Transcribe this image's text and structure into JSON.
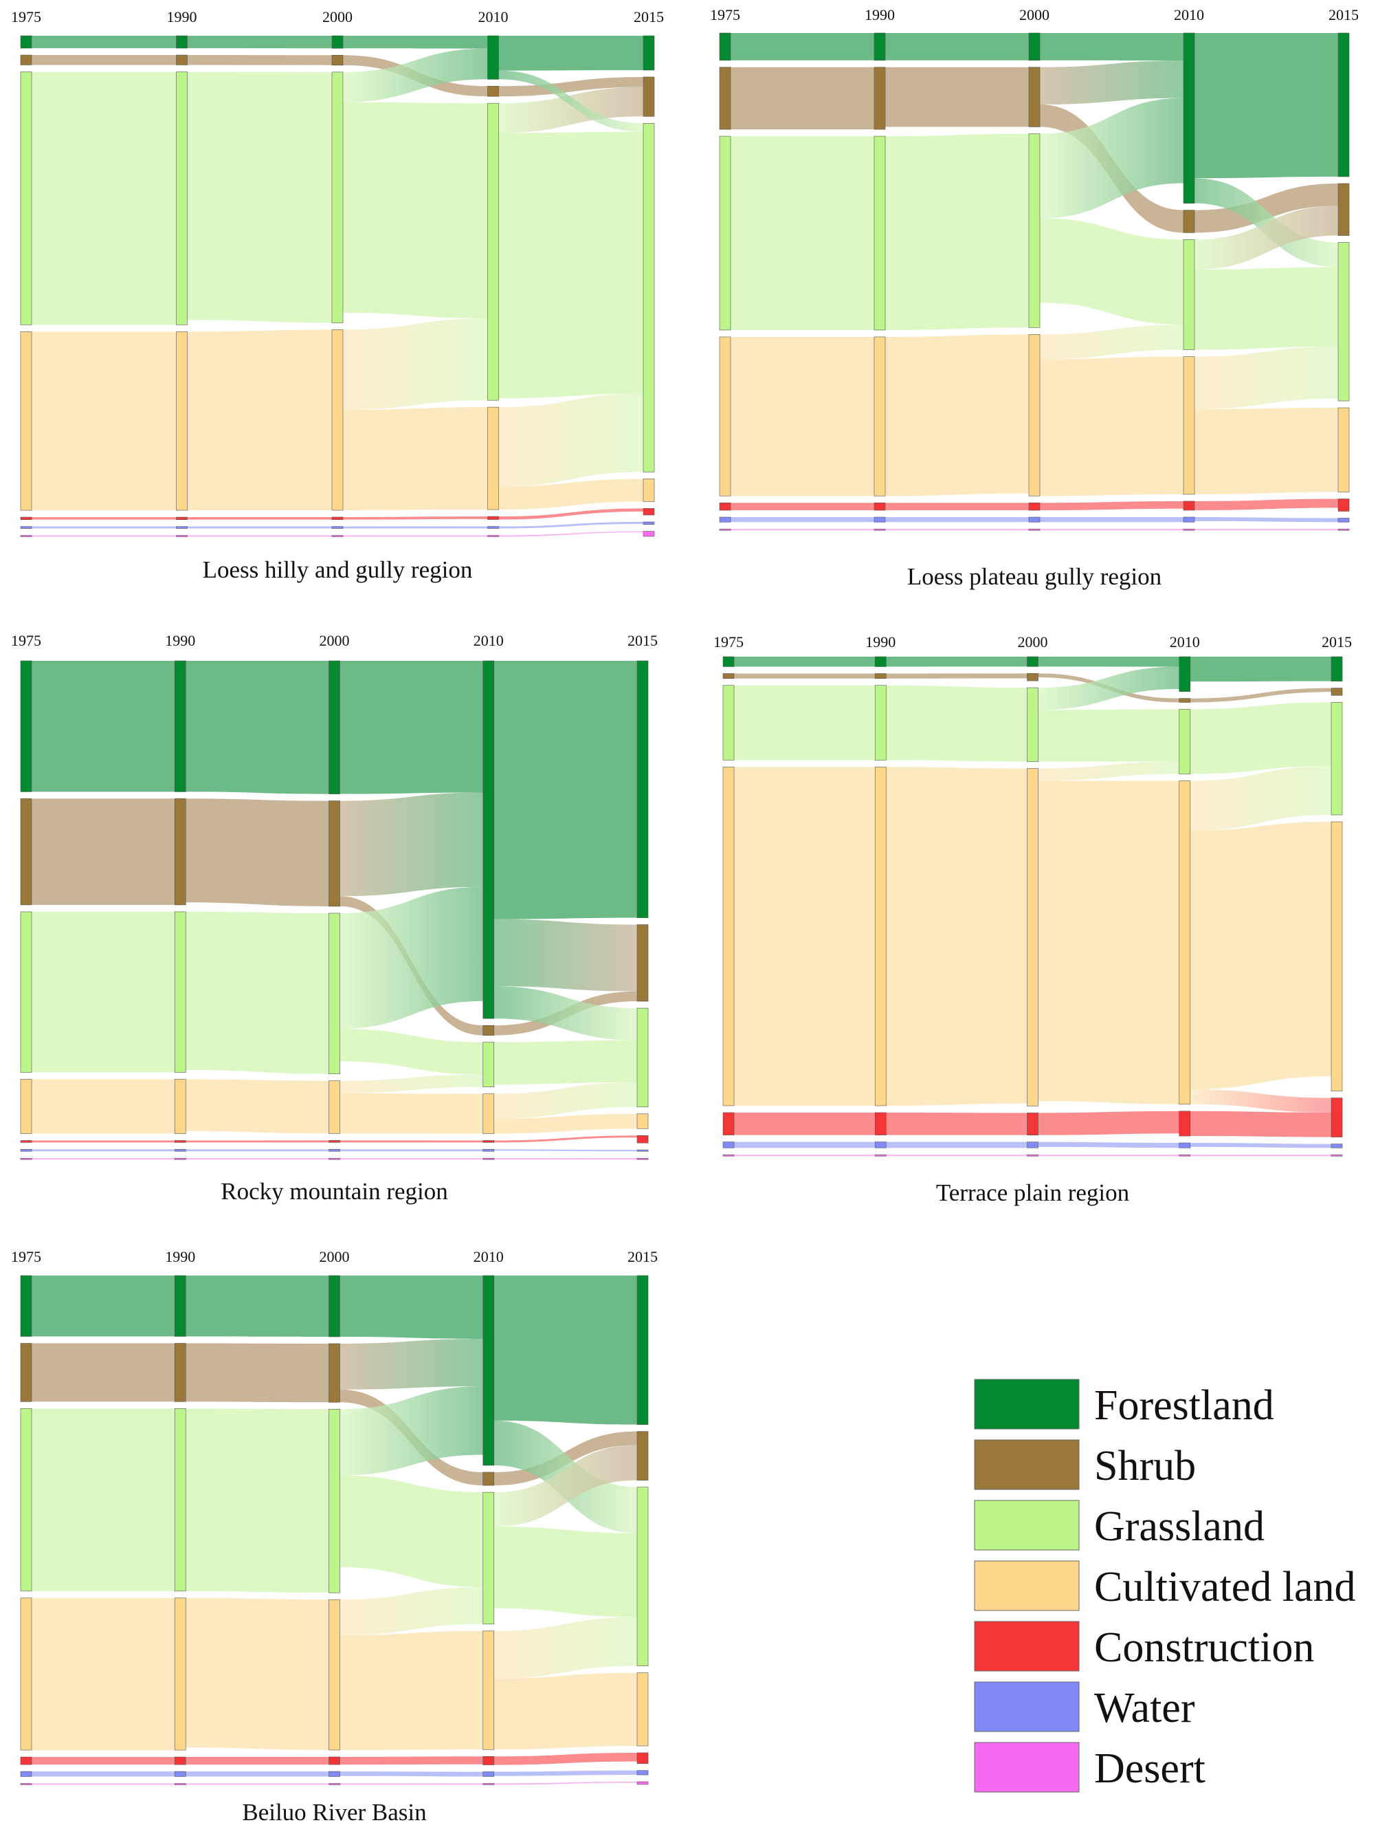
{
  "figure": {
    "categories": [
      "Forestland",
      "Shrub",
      "Grassland",
      "Cultivated land",
      "Construction",
      "Water",
      "Desert"
    ],
    "colors": {
      "Forestland": "#038a30",
      "Shrub": "#9a783a",
      "Grassland": "#bdf58a",
      "Cultivated land": "#fdd88c",
      "Construction": "#f43538",
      "Water": "#808af8",
      "Desert": "#f56af0"
    },
    "flow_colors": {
      "Forestland": "#6cba86",
      "Shrub": "#c9b497",
      "Grassland": "#ddf8c4",
      "Cultivated land": "#fde9c0",
      "Construction": "#fb8b8d",
      "Water": "#b9bff9",
      "Desert": "#f7b4f4"
    }
  },
  "legend": {
    "items": [
      {
        "label": "Forestland",
        "color": "#038a30"
      },
      {
        "label": "Shrub",
        "color": "#9a783a"
      },
      {
        "label": "Grassland",
        "color": "#bdf58a"
      },
      {
        "label": "Cultivated land",
        "color": "#fdd88c"
      },
      {
        "label": "Construction",
        "color": "#f43538"
      },
      {
        "label": "Water",
        "color": "#808af8"
      },
      {
        "label": "Desert",
        "color": "#f56af0"
      }
    ]
  },
  "chart_data": [
    {
      "type": "sankey",
      "title": "Loess hilly and gully region",
      "years": [
        "1975",
        "1990",
        "2000",
        "2010",
        "2015"
      ],
      "unit": "relative area (% of region, estimated)",
      "node_values": {
        "Forestland": [
          2.5,
          2.5,
          2.5,
          8.5,
          6.8
        ],
        "Shrub": [
          2.0,
          2.0,
          2.0,
          2.0,
          7.8
        ],
        "Grassland": [
          51.0,
          51.0,
          50.0,
          58.0,
          69.0
        ],
        "Cultivated land": [
          36.0,
          36.0,
          36.0,
          20.0,
          4.5
        ],
        "Construction": [
          0.5,
          0.5,
          0.5,
          0.6,
          1.3
        ],
        "Water": [
          0.4,
          0.4,
          0.4,
          0.4,
          0.5
        ],
        "Desert": [
          0.2,
          0.2,
          0.2,
          0.2,
          1.0
        ]
      },
      "transitions": [
        {
          "period": "2000-2010",
          "from": "Grassland",
          "to": "Forestland",
          "value": 6.0
        },
        {
          "period": "2000-2010",
          "from": "Cultivated land",
          "to": "Grassland",
          "value": 16.0
        },
        {
          "period": "2010-2015",
          "from": "Cultivated land",
          "to": "Grassland",
          "value": 15.5
        },
        {
          "period": "2010-2015",
          "from": "Grassland",
          "to": "Shrub",
          "value": 5.8
        },
        {
          "period": "2010-2015",
          "from": "Forestland",
          "to": "Grassland",
          "value": 1.7
        }
      ]
    },
    {
      "type": "sankey",
      "title": "Loess plateau gully region",
      "years": [
        "1975",
        "1990",
        "2000",
        "2010",
        "2015"
      ],
      "unit": "relative area (% of region, estimated)",
      "node_values": {
        "Forestland": [
          5.5,
          5.5,
          5.5,
          34.0,
          29.0
        ],
        "Shrub": [
          12.5,
          12.5,
          12.0,
          4.5,
          10.5
        ],
        "Grassland": [
          39.0,
          39.0,
          39.0,
          22.0,
          32.0
        ],
        "Cultivated land": [
          32.0,
          32.0,
          32.5,
          27.5,
          17.0
        ],
        "Construction": [
          1.5,
          1.5,
          1.5,
          1.8,
          2.5
        ],
        "Water": [
          1.0,
          1.0,
          1.0,
          1.0,
          0.8
        ],
        "Desert": [
          0.1,
          0.1,
          0.1,
          0.1,
          0.1
        ]
      },
      "transitions": [
        {
          "period": "2000-2010",
          "from": "Grassland",
          "to": "Forestland",
          "value": 17.0
        },
        {
          "period": "2000-2010",
          "from": "Shrub",
          "to": "Forestland",
          "value": 7.5
        },
        {
          "period": "2000-2010",
          "from": "Cultivated land",
          "to": "Grassland",
          "value": 5.0
        },
        {
          "period": "2010-2015",
          "from": "Forestland",
          "to": "Grassland",
          "value": 5.0
        },
        {
          "period": "2010-2015",
          "from": "Cultivated land",
          "to": "Grassland",
          "value": 10.5
        },
        {
          "period": "2010-2015",
          "from": "Grassland",
          "to": "Shrub",
          "value": 6.0
        }
      ]
    },
    {
      "type": "sankey",
      "title": "Rocky mountain region",
      "years": [
        "1975",
        "1990",
        "2000",
        "2010",
        "2015"
      ],
      "unit": "relative area (% of region, estimated)",
      "node_values": {
        "Forestland": [
          26.5,
          26.5,
          26.5,
          72.0,
          52.0
        ],
        "Shrub": [
          21.5,
          21.5,
          21.0,
          2.0,
          15.5
        ],
        "Grassland": [
          32.5,
          32.5,
          32.0,
          9.0,
          20.0
        ],
        "Cultivated land": [
          11.0,
          11.0,
          10.5,
          8.0,
          3.0
        ],
        "Construction": [
          0.4,
          0.4,
          0.4,
          0.4,
          1.5
        ],
        "Water": [
          0.4,
          0.4,
          0.4,
          0.4,
          0.3
        ],
        "Desert": [
          0.1,
          0.1,
          0.1,
          0.1,
          0.1
        ]
      },
      "transitions": [
        {
          "period": "2000-2010",
          "from": "Shrub",
          "to": "Forestland",
          "value": 19.0
        },
        {
          "period": "2000-2010",
          "from": "Grassland",
          "to": "Forestland",
          "value": 23.0
        },
        {
          "period": "2000-2010",
          "from": "Cultivated land",
          "to": "Grassland",
          "value": 2.5
        },
        {
          "period": "2010-2015",
          "from": "Forestland",
          "to": "Shrub",
          "value": 13.5
        },
        {
          "period": "2010-2015",
          "from": "Forestland",
          "to": "Grassland",
          "value": 6.5
        },
        {
          "period": "2010-2015",
          "from": "Cultivated land",
          "to": "Grassland",
          "value": 5.0
        }
      ]
    },
    {
      "type": "sankey",
      "title": "Terrace plain region",
      "years": [
        "1975",
        "1990",
        "2000",
        "2010",
        "2015"
      ],
      "unit": "relative area (% of region, estimated)",
      "node_values": {
        "Forestland": [
          2.0,
          2.0,
          2.0,
          7.0,
          5.0
        ],
        "Shrub": [
          1.0,
          1.0,
          1.5,
          0.8,
          1.5
        ],
        "Grassland": [
          15.0,
          15.0,
          15.0,
          13.0,
          23.0
        ],
        "Cultivated land": [
          68.0,
          68.0,
          68.5,
          65.0,
          55.0
        ],
        "Construction": [
          4.5,
          4.5,
          4.5,
          5.0,
          8.0
        ],
        "Water": [
          1.2,
          1.2,
          1.2,
          1.0,
          0.8
        ],
        "Desert": [
          0.1,
          0.1,
          0.1,
          0.1,
          0.1
        ]
      },
      "transitions": [
        {
          "period": "2000-2010",
          "from": "Grassland",
          "to": "Forestland",
          "value": 4.5
        },
        {
          "period": "2000-2010",
          "from": "Cultivated land",
          "to": "Grassland",
          "value": 2.5
        },
        {
          "period": "2010-2015",
          "from": "Cultivated land",
          "to": "Grassland",
          "value": 10.0
        },
        {
          "period": "2010-2015",
          "from": "Cultivated land",
          "to": "Construction",
          "value": 3.0
        }
      ]
    },
    {
      "type": "sankey",
      "title": "Beiluo River Basin",
      "years": [
        "1975",
        "1990",
        "2000",
        "2010",
        "2015"
      ],
      "unit": "relative area (% of region, estimated)",
      "node_values": {
        "Forestland": [
          12.0,
          12.0,
          12.0,
          36.0,
          27.5
        ],
        "Shrub": [
          11.5,
          11.5,
          11.5,
          2.5,
          9.0
        ],
        "Grassland": [
          36.0,
          36.0,
          36.0,
          25.0,
          33.0
        ],
        "Cultivated land": [
          30.0,
          30.0,
          29.5,
          22.5,
          13.5
        ],
        "Construction": [
          1.5,
          1.5,
          1.5,
          1.6,
          2.0
        ],
        "Water": [
          1.0,
          1.0,
          1.0,
          0.9,
          0.8
        ],
        "Desert": [
          0.2,
          0.2,
          0.2,
          0.2,
          0.5
        ]
      },
      "transitions": [
        {
          "period": "2000-2010",
          "from": "Grassland",
          "to": "Forestland",
          "value": 13.0
        },
        {
          "period": "2000-2010",
          "from": "Shrub",
          "to": "Forestland",
          "value": 9.0
        },
        {
          "period": "2000-2010",
          "from": "Cultivated land",
          "to": "Grassland",
          "value": 7.0
        },
        {
          "period": "2010-2015",
          "from": "Forestland",
          "to": "Grassland",
          "value": 8.5
        },
        {
          "period": "2010-2015",
          "from": "Grassland",
          "to": "Shrub",
          "value": 6.5
        },
        {
          "period": "2010-2015",
          "from": "Cultivated land",
          "to": "Grassland",
          "value": 9.0
        }
      ]
    }
  ]
}
